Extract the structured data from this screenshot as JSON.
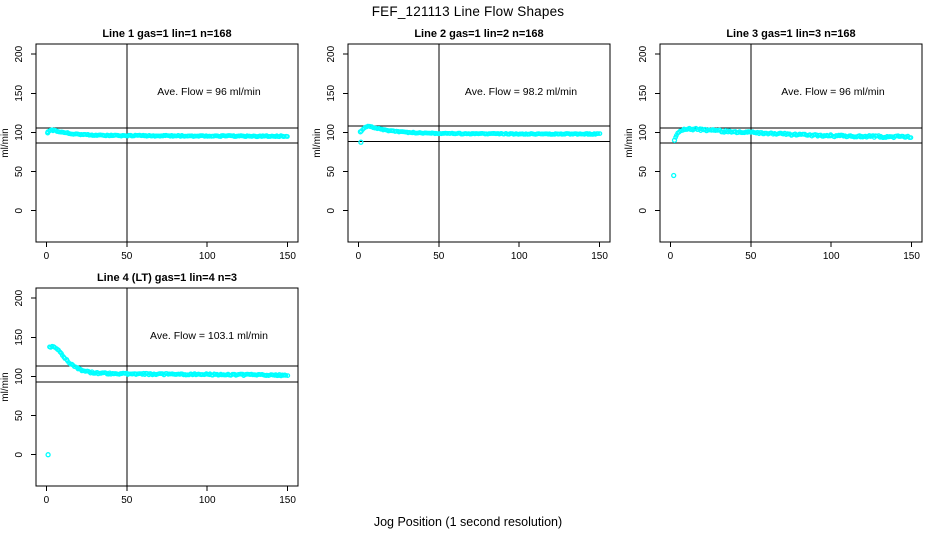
{
  "figure": {
    "title": "FEF_121113  Line Flow Shapes",
    "xlabel": "Jog Position (1 second resolution)",
    "background_color": "#ffffff",
    "point_color": "#00FFFF",
    "axis_color": "#000000"
  },
  "chart_data": [
    {
      "type": "scatter",
      "title": "Line 1 gas=1 lin=1 n=168",
      "annotation": "Ave. Flow =  96  ml/min",
      "ave_flow_ml_min": 96,
      "n": 168,
      "ylabel": "ml/min",
      "x_ticks": [
        0,
        50,
        100,
        150
      ],
      "y_ticks": [
        0,
        50,
        100,
        150,
        200
      ],
      "xlim": [
        -6.5,
        156.5
      ],
      "ylim": [
        -40,
        213
      ],
      "vline_x": 50,
      "hlines": [
        105.6,
        86.4
      ],
      "jitter": 0.7,
      "seed": 101,
      "profile": [
        [
          1,
          100.5
        ],
        [
          2,
          102
        ],
        [
          3,
          102.8
        ],
        [
          5,
          102.5
        ],
        [
          7,
          101.5
        ],
        [
          10,
          100.2
        ],
        [
          14,
          99
        ],
        [
          18,
          98
        ],
        [
          22,
          97.3
        ],
        [
          27,
          96.8
        ],
        [
          33,
          96.3
        ],
        [
          40,
          96
        ],
        [
          50,
          95.9
        ],
        [
          65,
          95.7
        ],
        [
          80,
          95.6
        ],
        [
          100,
          95.5
        ],
        [
          120,
          95.3
        ],
        [
          150,
          95.2
        ]
      ],
      "outliers": [
        [
          0.8,
          99.5
        ]
      ]
    },
    {
      "type": "scatter",
      "title": "Line 2 gas=1 lin=2 n=168",
      "annotation": "Ave. Flow =  98.2  ml/min",
      "ave_flow_ml_min": 98.2,
      "n": 168,
      "ylabel": "ml/min",
      "x_ticks": [
        0,
        50,
        100,
        150
      ],
      "y_ticks": [
        0,
        50,
        100,
        150,
        200
      ],
      "xlim": [
        -6.5,
        156.5
      ],
      "ylim": [
        -40,
        213
      ],
      "vline_x": 50,
      "hlines": [
        108.0,
        88.4
      ],
      "jitter": 0.6,
      "seed": 202,
      "profile": [
        [
          2,
          101
        ],
        [
          3,
          104.5
        ],
        [
          4,
          106.5
        ],
        [
          5,
          107.5
        ],
        [
          6,
          107.8
        ],
        [
          8,
          107.2
        ],
        [
          10,
          106
        ],
        [
          13,
          104.5
        ],
        [
          16,
          103.2
        ],
        [
          20,
          102
        ],
        [
          24,
          101
        ],
        [
          28,
          100.4
        ],
        [
          33,
          99.8
        ],
        [
          40,
          99.2
        ],
        [
          50,
          98.8
        ],
        [
          60,
          98.5
        ],
        [
          80,
          98.2
        ],
        [
          100,
          98.1
        ],
        [
          120,
          98
        ],
        [
          150,
          98
        ]
      ],
      "outliers": [
        [
          1.5,
          87.5
        ],
        [
          1.2,
          100.8
        ]
      ]
    },
    {
      "type": "scatter",
      "title": "Line 3 gas=1 lin=3 n=168",
      "annotation": "Ave. Flow =  96  ml/min",
      "ave_flow_ml_min": 96,
      "n": 168,
      "ylabel": "ml/min",
      "x_ticks": [
        0,
        50,
        100,
        150
      ],
      "y_ticks": [
        0,
        50,
        100,
        150,
        200
      ],
      "xlim": [
        -6.5,
        156.5
      ],
      "ylim": [
        -40,
        213
      ],
      "vline_x": 50,
      "hlines": [
        105.6,
        86.4
      ],
      "jitter": 1.3,
      "seed": 303,
      "profile": [
        [
          3,
          93
        ],
        [
          4,
          97
        ],
        [
          5,
          100
        ],
        [
          6,
          101.8
        ],
        [
          8,
          103
        ],
        [
          10,
          103.8
        ],
        [
          13,
          104.2
        ],
        [
          16,
          104
        ],
        [
          20,
          103.4
        ],
        [
          25,
          102.6
        ],
        [
          30,
          101.9
        ],
        [
          35,
          101.2
        ],
        [
          40,
          100.7
        ],
        [
          50,
          99.8
        ],
        [
          60,
          98.8
        ],
        [
          70,
          97.8
        ],
        [
          80,
          97
        ],
        [
          90,
          96.3
        ],
        [
          100,
          95.8
        ],
        [
          110,
          95.3
        ],
        [
          120,
          95
        ],
        [
          135,
          94.6
        ],
        [
          150,
          94.3
        ]
      ],
      "outliers": [
        [
          2,
          45
        ],
        [
          2.5,
          90
        ]
      ]
    },
    {
      "type": "scatter",
      "title": "Line 4 (LT) gas=1 lin=4 n=3",
      "annotation": "Ave. Flow =  103.1  ml/min",
      "ave_flow_ml_min": 103.1,
      "n": 3,
      "ylabel": "ml/min",
      "x_ticks": [
        0,
        50,
        100,
        150
      ],
      "y_ticks": [
        0,
        50,
        100,
        150,
        200
      ],
      "xlim": [
        -6.5,
        156.5
      ],
      "ylim": [
        -40,
        213
      ],
      "vline_x": 50,
      "hlines": [
        113.4,
        92.8
      ],
      "jitter": 1.0,
      "seed": 404,
      "profile": [
        [
          2,
          137
        ],
        [
          3,
          138
        ],
        [
          4,
          138.5
        ],
        [
          5,
          138
        ],
        [
          6,
          136.5
        ],
        [
          7,
          134.5
        ],
        [
          8,
          132
        ],
        [
          9,
          129.5
        ],
        [
          10,
          127
        ],
        [
          11,
          124.5
        ],
        [
          12,
          122
        ],
        [
          13,
          119.8
        ],
        [
          14,
          117.8
        ],
        [
          15,
          116
        ],
        [
          16,
          114.4
        ],
        [
          17,
          113
        ],
        [
          18,
          111.8
        ],
        [
          19,
          110.7
        ],
        [
          20,
          109.7
        ],
        [
          22,
          108
        ],
        [
          24,
          106.8
        ],
        [
          26,
          105.8
        ],
        [
          28,
          105.1
        ],
        [
          30,
          104.6
        ],
        [
          34,
          104
        ],
        [
          38,
          103.7
        ],
        [
          45,
          103.4
        ],
        [
          55,
          103.2
        ],
        [
          65,
          103
        ],
        [
          75,
          102.9
        ],
        [
          85,
          102.8
        ],
        [
          95,
          102.6
        ],
        [
          105,
          102.4
        ],
        [
          115,
          102.2
        ],
        [
          125,
          102
        ],
        [
          135,
          101.8
        ],
        [
          150,
          101.5
        ]
      ],
      "outliers": [
        [
          1,
          0
        ]
      ]
    }
  ]
}
